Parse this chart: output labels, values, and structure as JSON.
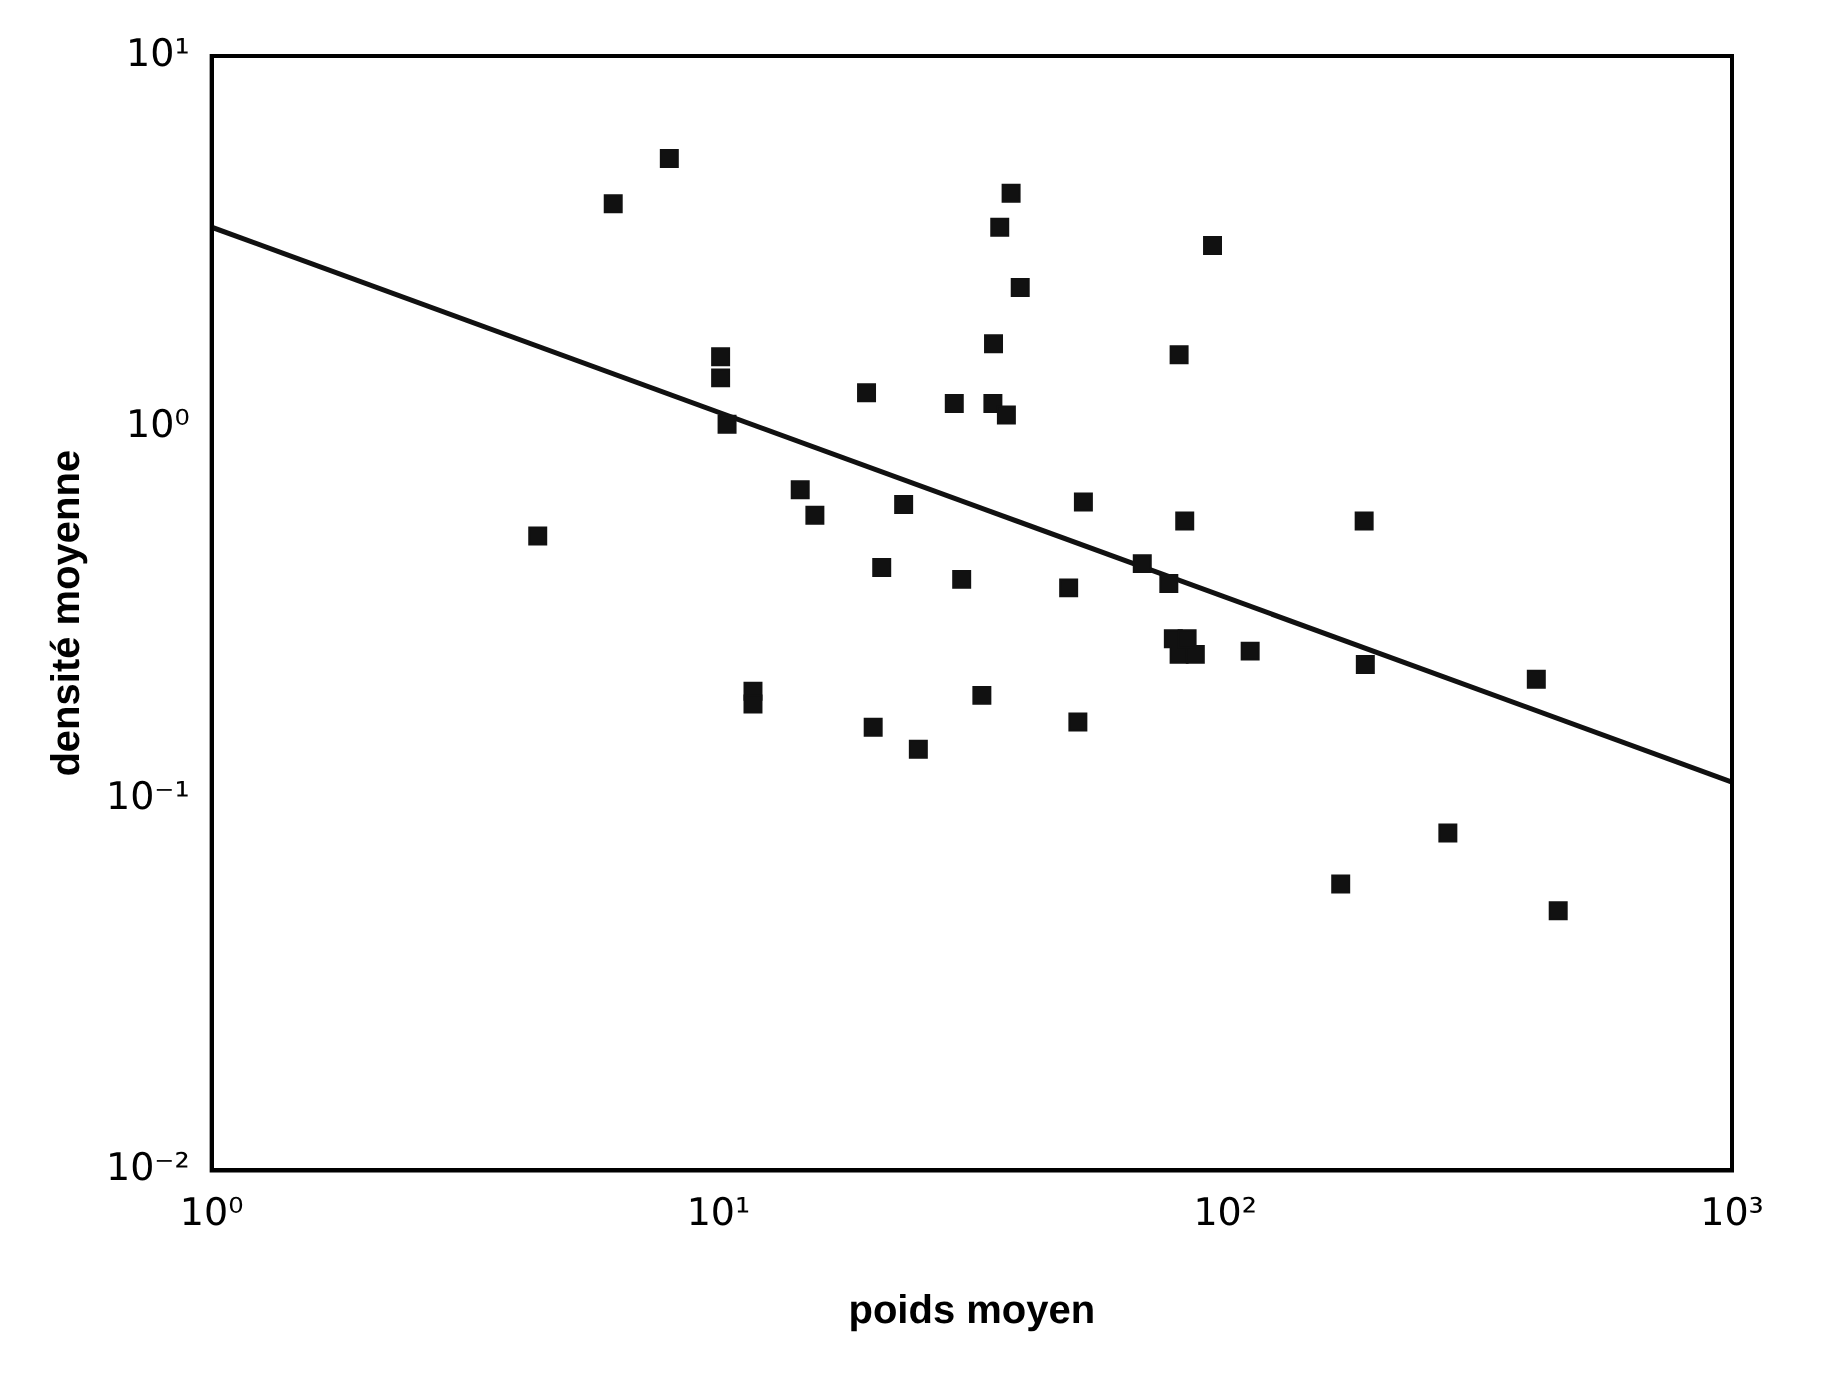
{
  "chart_data": {
    "type": "scatter",
    "xlabel": "poids moyen",
    "ylabel": "densité moyenne",
    "log": "xy",
    "grid": false,
    "legend": false,
    "marker": "square",
    "xlim": [
      1,
      1000
    ],
    "ylim": [
      0.01,
      10
    ],
    "xticks": [
      {
        "value": 1,
        "label": "10⁰"
      },
      {
        "value": 10,
        "label": "10¹"
      },
      {
        "value": 100,
        "label": "10²"
      },
      {
        "value": 1000,
        "label": "10³"
      }
    ],
    "yticks": [
      {
        "value": 0.01,
        "label": "10⁻²"
      },
      {
        "value": 0.1,
        "label": "10⁻¹"
      },
      {
        "value": 1,
        "label": "10⁰"
      },
      {
        "value": 10,
        "label": "10¹"
      }
    ],
    "series": [
      {
        "color": "#111111",
        "x": [
          4.4,
          6.2,
          8.0,
          10.1,
          10.1,
          10.4,
          11.7,
          11.7,
          14.5,
          15.5,
          19.6,
          20.2,
          21.0,
          23.2,
          24.8,
          29.2,
          30.2,
          33.1,
          34.9,
          35.9,
          34.8,
          37.0,
          37.8,
          39.4,
          49.1,
          51.2,
          52.5,
          68.6,
          77.4,
          81.1,
          83.2,
          79.0,
          81.1,
          87.3,
          84.1,
          94.4,
          112,
          169,
          188,
          189,
          275,
          411,
          454
        ],
        "values": [
          0.51,
          4.0,
          5.3,
          1.55,
          1.36,
          1.02,
          0.195,
          0.18,
          0.68,
          0.58,
          1.24,
          0.156,
          0.42,
          0.62,
          0.136,
          1.16,
          0.39,
          0.19,
          1.68,
          3.46,
          1.16,
          1.08,
          4.27,
          2.38,
          0.37,
          0.161,
          0.63,
          0.43,
          0.38,
          1.57,
          0.56,
          0.27,
          0.245,
          0.245,
          0.27,
          3.09,
          0.25,
          0.059,
          0.56,
          0.23,
          0.081,
          0.21,
          0.05
        ]
      },
      {
        "type": "line",
        "color": "#111111",
        "line_style": "solid",
        "marker": "none",
        "x": [
          1,
          1000
        ],
        "values": [
          3.46,
          0.111
        ]
      }
    ]
  }
}
